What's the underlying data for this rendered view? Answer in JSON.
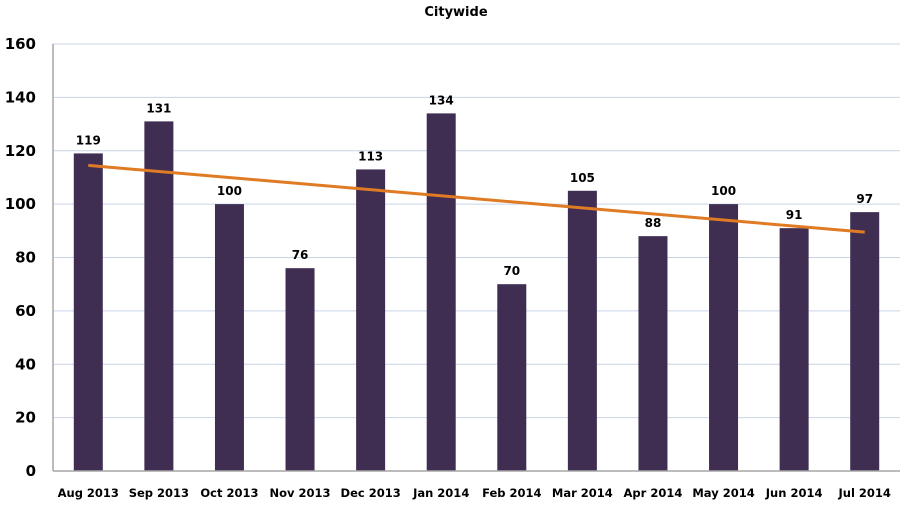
{
  "chart_data": {
    "type": "bar",
    "title": "Citywide",
    "xlabel": "",
    "ylabel": "",
    "categories": [
      "Aug 2013",
      "Sep 2013",
      "Oct 2013",
      "Nov 2013",
      "Dec 2013",
      "Jan 2014",
      "Feb 2014",
      "Mar 2014",
      "Apr 2014",
      "May 2014",
      "Jun 2014",
      "Jul 2014"
    ],
    "series": [
      {
        "name": "Citywide",
        "values": [
          119,
          131,
          100,
          76,
          113,
          134,
          70,
          105,
          88,
          100,
          91,
          97
        ],
        "color": "#3f2e52"
      }
    ],
    "trendline": {
      "type": "linear",
      "start": 114.5,
      "end": 89.5,
      "color": "#e07b24"
    },
    "ylim": [
      0,
      160
    ],
    "yticks": [
      "0",
      "20",
      "40",
      "60",
      "80",
      "100",
      "120",
      "140",
      "160"
    ],
    "grid": true,
    "legend": "none",
    "data_labels": true
  }
}
